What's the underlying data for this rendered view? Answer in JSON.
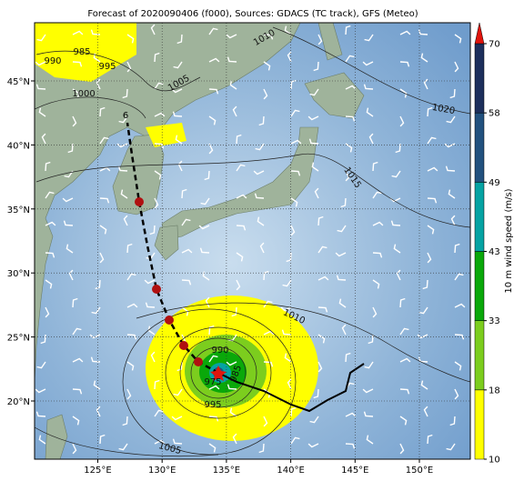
{
  "title": "Forecast of 2020090406 (f000), Sources: GDACS (TC track), GFS (Meteo)",
  "lon_ticks": [
    "125°E",
    "130°E",
    "135°E",
    "140°E",
    "145°E",
    "150°E"
  ],
  "lat_ticks": [
    "45°N",
    "40°N",
    "35°N",
    "30°N",
    "25°N",
    "20°N"
  ],
  "colorbar": {
    "label": "10 m wind speed (m/s)",
    "ticks": [
      10,
      18,
      33,
      43,
      49,
      58,
      70
    ],
    "colors": [
      "#ffff00",
      "#7ccd1e",
      "#0aa80a",
      "#05a3a3",
      "#22517e",
      "#1d2f5c"
    ],
    "extend_color": "#e0140c"
  },
  "isobar_labels": [
    990,
    985,
    995,
    1000,
    1005,
    1010,
    1020,
    1015,
    1010,
    990,
    985,
    975,
    995,
    1005
  ],
  "storm_symbol": "6"
}
